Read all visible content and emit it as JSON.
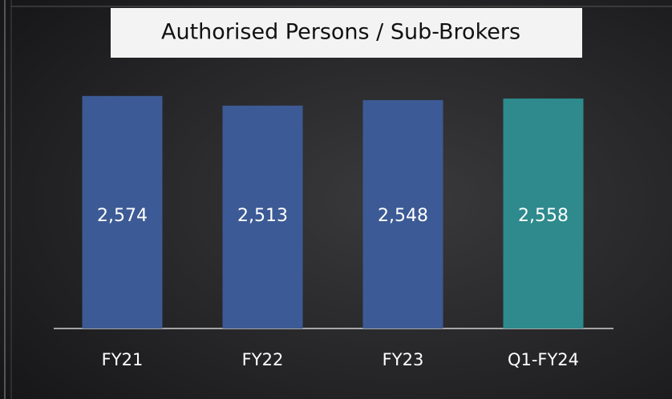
{
  "chart_data": {
    "type": "bar",
    "title": "Authorised Persons / Sub-Brokers",
    "categories": [
      "FY21",
      "FY22",
      "FY23",
      "Q1-FY24"
    ],
    "values": [
      2574,
      2513,
      2548,
      2558
    ],
    "value_labels": [
      "2,574",
      "2,513",
      "2,548",
      "2,558"
    ],
    "colors": [
      "#3c5a95",
      "#3c5a95",
      "#3c5a95",
      "#2e8a8c"
    ],
    "ylim": [
      1100,
      2700
    ]
  }
}
